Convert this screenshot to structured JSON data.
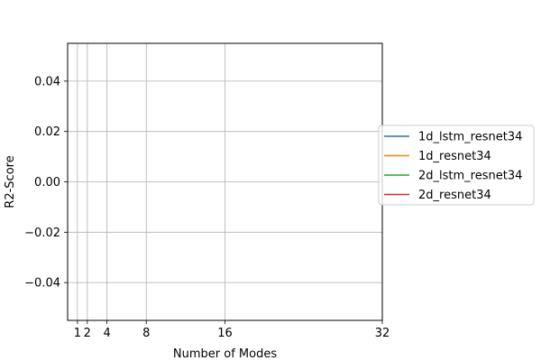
{
  "chart_data": {
    "type": "line",
    "title": "",
    "xlabel": "Number of  Modes",
    "ylabel": "R2-Score",
    "x_ticks": [
      1,
      2,
      4,
      8,
      16,
      32
    ],
    "x_tick_labels": [
      "1",
      "2",
      "4",
      "8",
      "16",
      "32"
    ],
    "xlim": [
      0,
      32
    ],
    "y_ticks": [
      -0.04,
      -0.02,
      0.0,
      0.02,
      0.04
    ],
    "y_tick_labels": [
      "−0.04",
      "−0.02",
      "0.00",
      "0.02",
      "0.04"
    ],
    "ylim": [
      -0.055,
      0.055
    ],
    "grid": true,
    "legend_position": "right, outside plot area",
    "series": [
      {
        "name": "1d_lstm_resnet34",
        "color": "#1f77b4",
        "x": [],
        "y": []
      },
      {
        "name": "1d_resnet34",
        "color": "#ff7f0e",
        "x": [],
        "y": []
      },
      {
        "name": "2d_lstm_resnet34",
        "color": "#2ca02c",
        "x": [],
        "y": []
      },
      {
        "name": "2d_resnet34",
        "color": "#d62728",
        "x": [],
        "y": []
      }
    ]
  }
}
